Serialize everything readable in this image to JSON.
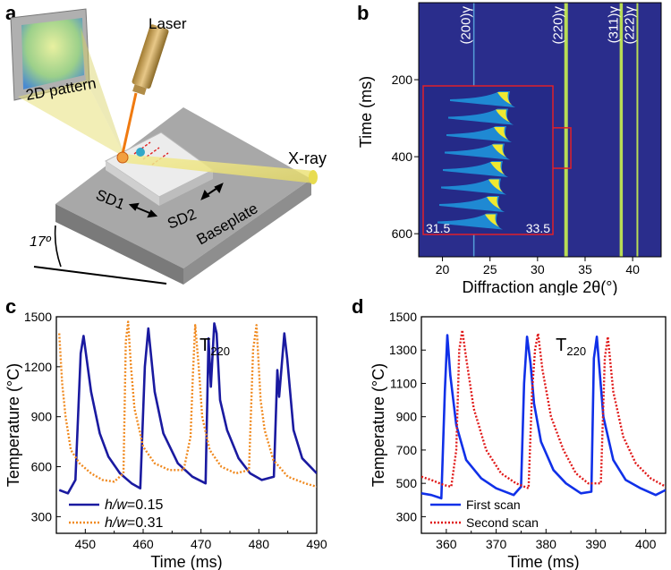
{
  "figure": {
    "panel_labels": [
      "a",
      "b",
      "c",
      "d"
    ]
  },
  "panel_a": {
    "labels": {
      "laser": "Laser",
      "pattern": "2D pattern",
      "xray": "X-ray",
      "sd1": "SD1",
      "sd2": "SD2",
      "baseplate": "Baseplate",
      "angle": "17º"
    },
    "colors": {
      "beam": "#e6dc50",
      "laser_head": "#c9a45a",
      "plate": "#9a9a9a"
    }
  },
  "chart_data": [
    {
      "panel": "b",
      "type": "heatmap",
      "title": "",
      "xlabel": "Diffraction angle 2θ(°)",
      "ylabel": "Time (ms)",
      "xlim": [
        17.5,
        43
      ],
      "ylim": [
        660,
        0
      ],
      "x_ticks": [
        20,
        25,
        30,
        35,
        40
      ],
      "y_ticks": [
        200,
        400,
        600
      ],
      "peaks": [
        {
          "label": "(200)γ",
          "two_theta": 23.3
        },
        {
          "label": "(220)γ",
          "two_theta": 33.0
        },
        {
          "label": "(311)γ",
          "two_theta": 38.8
        },
        {
          "label": "(222)γ",
          "two_theta": 40.5
        }
      ],
      "inset": {
        "x_min_label": "31.5",
        "x_max_label": "33.5",
        "time_range": [
          325,
          430
        ],
        "two_theta_range": [
          31.5,
          33.5
        ]
      },
      "colors": {
        "background": "#2a2d8c",
        "peak": "#c8f050",
        "inset_border": "#e0202a"
      }
    },
    {
      "panel": "c",
      "type": "line",
      "xlabel": "Time (ms)",
      "ylabel": "Temperature (°C)",
      "annotation": "T",
      "annotation_sub": "220",
      "xlim": [
        445,
        490
      ],
      "ylim": [
        200,
        1500
      ],
      "x_ticks": [
        450,
        460,
        470,
        480,
        490
      ],
      "y_ticks": [
        300,
        600,
        900,
        1200,
        1500
      ],
      "series": [
        {
          "name_prefix": "h/w",
          "name_value": "=0.15",
          "color": "#1a1aa0",
          "style": "solid",
          "x": [
            445.5,
            447,
            448.3,
            449.2,
            449.7,
            451,
            452.5,
            454,
            456,
            458,
            459.5,
            460.3,
            460.9,
            462,
            463.5,
            466,
            468.5,
            470.8,
            471.3,
            471.7,
            472.3,
            472.7,
            473.3,
            474.5,
            476.5,
            478.5,
            480.5,
            482.6,
            483.2,
            483.5,
            484.4,
            484.9,
            486,
            487.5,
            490
          ],
          "y": [
            460,
            440,
            520,
            1280,
            1385,
            1050,
            800,
            660,
            560,
            500,
            470,
            1200,
            1430,
            1050,
            800,
            620,
            540,
            500,
            1370,
            1080,
            1460,
            1400,
            1000,
            820,
            650,
            560,
            520,
            540,
            1180,
            1020,
            1400,
            1250,
            820,
            650,
            560
          ]
        },
        {
          "name_prefix": "h/w",
          "name_value": "=0.31",
          "color": "#f08a20",
          "style": "dotted",
          "x": [
            445.5,
            446,
            446.6,
            447.5,
            449,
            451,
            453,
            455,
            456.6,
            457,
            457.4,
            457.9,
            458.5,
            460,
            462,
            464.5,
            467,
            468.2,
            468.6,
            469,
            469.6,
            470.2,
            471.5,
            473.5,
            476,
            478.3,
            479,
            479.6,
            480.3,
            481,
            482.5,
            485,
            488,
            490
          ],
          "y": [
            1400,
            1100,
            900,
            700,
            620,
            560,
            520,
            510,
            560,
            1350,
            1470,
            1200,
            950,
            720,
            620,
            580,
            580,
            780,
            1150,
            1450,
            1200,
            900,
            700,
            600,
            560,
            580,
            1300,
            1450,
            1000,
            820,
            640,
            540,
            500,
            480
          ]
        }
      ]
    },
    {
      "panel": "d",
      "type": "line",
      "xlabel": "Time (ms)",
      "ylabel": "Temperature (°C)",
      "annotation": "T",
      "annotation_sub": "220",
      "xlim": [
        355,
        404
      ],
      "ylim": [
        200,
        1500
      ],
      "x_ticks": [
        360,
        370,
        380,
        390,
        400
      ],
      "y_ticks": [
        300,
        500,
        700,
        900,
        1100,
        1300,
        1500
      ],
      "series": [
        {
          "name": "First scan",
          "color": "#1030e8",
          "style": "solid",
          "x": [
            355,
            357,
            359,
            359.7,
            360.2,
            360.8,
            362,
            364,
            367,
            370,
            373.5,
            375,
            375.6,
            376.2,
            376.9,
            377.6,
            379,
            381.5,
            384,
            387,
            389.1,
            389.6,
            390.2,
            391.5,
            393.5,
            396,
            399,
            402,
            404
          ],
          "y": [
            440,
            430,
            410,
            1050,
            1390,
            1150,
            850,
            640,
            530,
            470,
            430,
            480,
            1100,
            1380,
            1220,
            980,
            750,
            580,
            500,
            440,
            450,
            1250,
            1380,
            900,
            640,
            520,
            470,
            430,
            460
          ]
        },
        {
          "name": "Second scan",
          "color": "#e01818",
          "style": "dotted",
          "x": [
            355,
            357,
            359.5,
            361,
            362,
            362.6,
            363.2,
            364,
            365.5,
            368,
            371,
            374,
            376.5,
            377.2,
            377.8,
            378.4,
            379.3,
            381,
            383.5,
            386,
            388.5,
            391,
            391.8,
            392.4,
            393.5,
            395.5,
            398,
            401,
            404
          ],
          "y": [
            540,
            520,
            490,
            480,
            700,
            1300,
            1420,
            1250,
            950,
            700,
            560,
            500,
            470,
            1050,
            1300,
            1400,
            1180,
            900,
            700,
            560,
            500,
            500,
            1250,
            1380,
            1050,
            780,
            620,
            530,
            480
          ]
        }
      ]
    }
  ]
}
